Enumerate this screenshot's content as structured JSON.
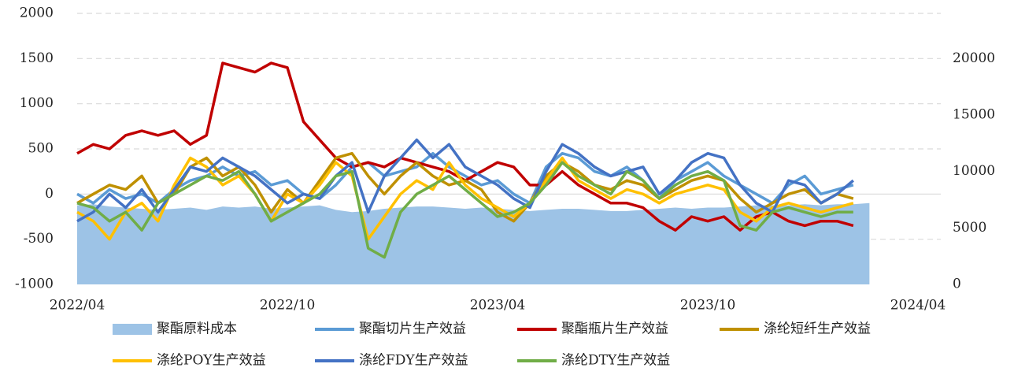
{
  "chart_data": {
    "type": "line",
    "categories": [
      "2022/04",
      null,
      null,
      null,
      null,
      null,
      null,
      null,
      null,
      null,
      null,
      null,
      null,
      "2022/10",
      null,
      null,
      null,
      null,
      null,
      null,
      null,
      null,
      null,
      null,
      null,
      null,
      "2023/04",
      null,
      null,
      null,
      null,
      null,
      null,
      null,
      null,
      null,
      null,
      null,
      null,
      "2023/10",
      null,
      null,
      null,
      null,
      null,
      null,
      null,
      null,
      null,
      null,
      null,
      null,
      "2024/04"
    ],
    "ylim": [
      -1000,
      2000
    ],
    "yticks": [
      -1000,
      -500,
      0,
      500,
      1000,
      1500,
      2000
    ],
    "y2lim": [
      0,
      24000
    ],
    "y2ticks": [
      0,
      5000,
      10000,
      15000,
      20000
    ],
    "grid": true,
    "series": [
      {
        "name": "聚酯原料成本",
        "type": "area",
        "axis": "y2",
        "color": "#9dc3e6",
        "values": [
          7000,
          7100,
          6900,
          6800,
          6700,
          6600,
          6700,
          6800,
          6600,
          6900,
          6800,
          6900,
          6700,
          6800,
          6900,
          7000,
          6600,
          6400,
          6500,
          6700,
          6800,
          6900,
          6900,
          6800,
          6700,
          6800,
          6700,
          6600,
          6500,
          6600,
          6700,
          6700,
          6600,
          6500,
          6500,
          6600,
          6700,
          6800,
          6700,
          6800,
          6800,
          6900,
          7000,
          7000,
          7000,
          7100,
          7000,
          7100,
          7100,
          7200,
          null,
          null,
          null
        ]
      },
      {
        "name": "聚酯切片生产效益",
        "type": "line",
        "color": "#5b9bd5",
        "values": [
          0,
          -100,
          50,
          -50,
          0,
          -100,
          50,
          150,
          200,
          300,
          200,
          250,
          100,
          150,
          0,
          -50,
          100,
          300,
          350,
          200,
          250,
          300,
          450,
          300,
          200,
          100,
          150,
          0,
          -100,
          300,
          450,
          400,
          250,
          200,
          300,
          150,
          -50,
          150,
          250,
          350,
          200,
          100,
          0,
          -100,
          100,
          200,
          0,
          50,
          100,
          null,
          null,
          null,
          null
        ]
      },
      {
        "name": "聚酯瓶片生产效益",
        "type": "line",
        "color": "#c00000",
        "values": [
          450,
          550,
          500,
          650,
          700,
          650,
          700,
          550,
          650,
          1450,
          1400,
          1350,
          1450,
          1400,
          800,
          600,
          400,
          300,
          350,
          300,
          400,
          350,
          300,
          250,
          150,
          250,
          350,
          300,
          100,
          100,
          250,
          100,
          0,
          -100,
          -100,
          -150,
          -300,
          -400,
          -250,
          -300,
          -250,
          -400,
          -250,
          -200,
          -300,
          -350,
          -300,
          -300,
          -350,
          null,
          null,
          null,
          null
        ]
      },
      {
        "name": "涤纶短纤生产效益",
        "type": "line",
        "color": "#bf9000",
        "values": [
          -100,
          0,
          100,
          50,
          200,
          -100,
          0,
          300,
          400,
          200,
          300,
          100,
          -200,
          50,
          -100,
          150,
          400,
          450,
          200,
          0,
          200,
          350,
          200,
          100,
          150,
          50,
          -200,
          -300,
          -100,
          200,
          350,
          250,
          100,
          50,
          150,
          100,
          -50,
          50,
          150,
          200,
          150,
          -50,
          -200,
          -100,
          0,
          50,
          -100,
          0,
          -50,
          null,
          null,
          null,
          null
        ]
      },
      {
        "name": "涤纶POY生产效益",
        "type": "line",
        "color": "#ffc000",
        "values": [
          -200,
          -300,
          -500,
          -200,
          -100,
          -300,
          100,
          400,
          300,
          100,
          200,
          0,
          -300,
          0,
          -100,
          100,
          350,
          200,
          -500,
          -250,
          0,
          150,
          50,
          350,
          100,
          -50,
          -150,
          -250,
          -100,
          150,
          400,
          150,
          50,
          -50,
          50,
          0,
          -100,
          0,
          50,
          100,
          50,
          -200,
          -300,
          -150,
          -100,
          -150,
          -200,
          -150,
          -100,
          null,
          null,
          null,
          null
        ]
      },
      {
        "name": "涤纶FDY生产效益",
        "type": "line",
        "color": "#4472c4",
        "values": [
          -300,
          -200,
          0,
          -150,
          50,
          -200,
          50,
          300,
          250,
          400,
          300,
          200,
          50,
          -100,
          0,
          -50,
          200,
          350,
          -200,
          200,
          400,
          600,
          400,
          550,
          300,
          200,
          100,
          -50,
          -150,
          250,
          550,
          450,
          300,
          200,
          250,
          300,
          0,
          150,
          350,
          450,
          400,
          100,
          -100,
          -200,
          150,
          100,
          -100,
          0,
          150,
          null,
          null,
          null,
          null
        ]
      },
      {
        "name": "涤纶DTY生产效益",
        "type": "line",
        "color": "#70ad47",
        "values": [
          -100,
          -150,
          -300,
          -200,
          -400,
          -100,
          0,
          100,
          200,
          150,
          250,
          0,
          -300,
          -200,
          -100,
          0,
          200,
          250,
          -600,
          -700,
          -200,
          0,
          100,
          200,
          50,
          -100,
          -250,
          -200,
          -100,
          100,
          350,
          200,
          100,
          0,
          250,
          150,
          -50,
          100,
          200,
          250,
          150,
          -350,
          -400,
          -200,
          -150,
          -200,
          -250,
          -200,
          -200,
          null,
          null,
          null,
          null
        ]
      }
    ]
  }
}
